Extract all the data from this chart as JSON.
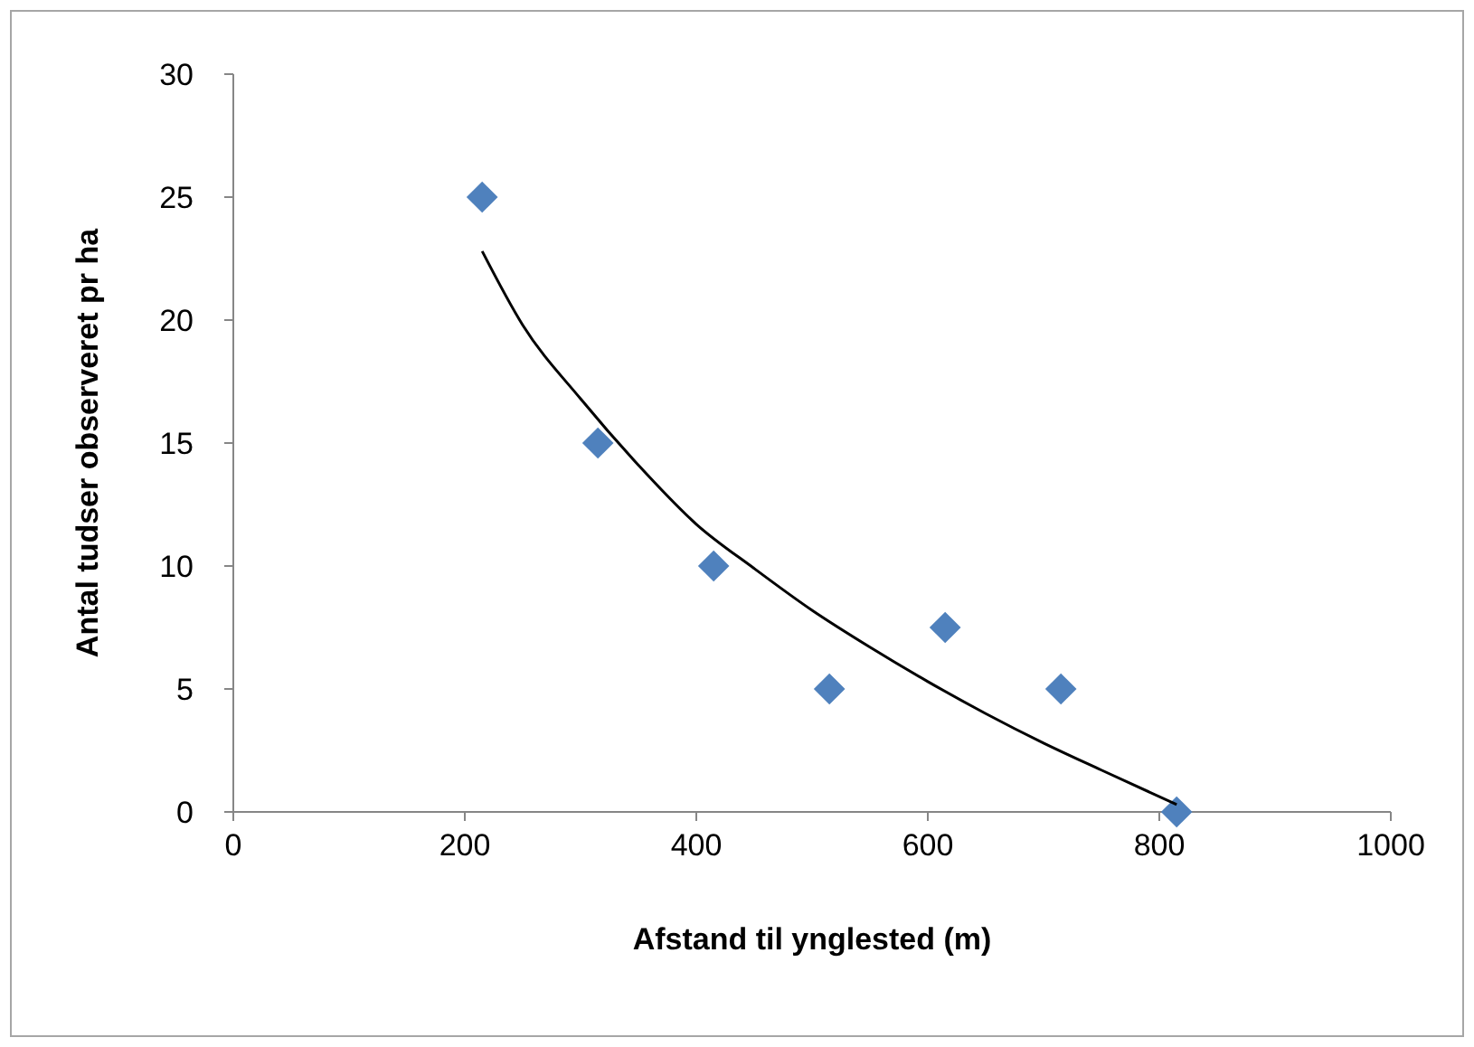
{
  "chart_data": {
    "type": "scatter",
    "xlabel": "Afstand til ynglested (m)",
    "ylabel": "Antal tudser observeret pr ha",
    "xlim": [
      0,
      1000
    ],
    "xticks": [
      0,
      200,
      400,
      600,
      800,
      1000
    ],
    "ylim": [
      0,
      30
    ],
    "yticks": [
      0,
      5,
      10,
      15,
      20,
      25,
      30
    ],
    "grid": false,
    "marker": "diamond",
    "series": [
      {
        "color": "#4f81bd",
        "x": [
          215,
          315,
          415,
          515,
          615,
          715,
          815
        ],
        "values": [
          25,
          15,
          10,
          5,
          7.5,
          5,
          0
        ]
      },
      {
        "type": "line",
        "color": "#000000",
        "marker": "none",
        "line_style": "solid",
        "x": [
          215,
          250,
          300,
          350,
          400,
          450,
          500,
          550,
          600,
          650,
          700,
          750,
          815
        ],
        "values": [
          22.8,
          19.8,
          16.8,
          14.1,
          11.7,
          9.9,
          8.2,
          6.7,
          5.3,
          4.0,
          2.8,
          1.7,
          0.3
        ]
      }
    ]
  }
}
